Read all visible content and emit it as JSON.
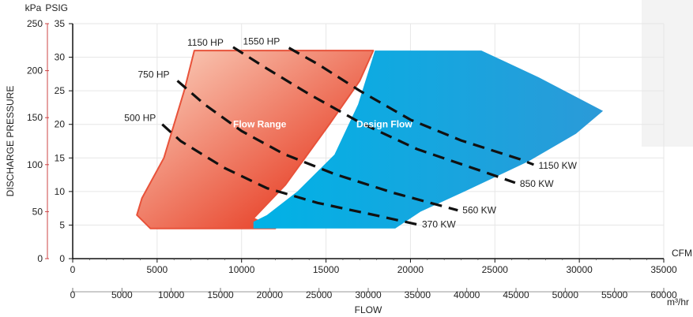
{
  "chart_data": {
    "type": "area",
    "title": "",
    "xlabel": "FLOW",
    "ylabel": "DISCHARGE PRESSURE",
    "x_axis_primary": {
      "unit": "CFM",
      "range": [
        0,
        35000
      ],
      "ticks": [
        0,
        5000,
        10000,
        15000,
        20000,
        25000,
        30000,
        35000
      ]
    },
    "x_axis_secondary": {
      "unit": "m³/hr",
      "range": [
        0,
        60000
      ],
      "ticks": [
        0,
        5000,
        10000,
        15000,
        20000,
        25000,
        30000,
        35000,
        40000,
        45000,
        50000,
        55000,
        60000
      ]
    },
    "y_axis_primary": {
      "unit": "PSIG",
      "range": [
        0,
        35
      ],
      "ticks": [
        0,
        5,
        10,
        15,
        20,
        25,
        30,
        35
      ]
    },
    "y_axis_secondary": {
      "unit": "kPa",
      "range": [
        0,
        250
      ],
      "ticks": [
        0,
        50,
        100,
        150,
        200,
        250
      ]
    },
    "regions": [
      {
        "name": "Flow Range",
        "color_light": "#fbd6c3",
        "color_dark": "#e8432a",
        "edge_color": "#e8523a",
        "points": [
          [
            7200,
            31
          ],
          [
            17800,
            31
          ],
          [
            17000,
            26.5
          ],
          [
            15200,
            20
          ],
          [
            12600,
            11
          ],
          [
            10700,
            6
          ],
          [
            12000,
            4.5
          ],
          [
            4600,
            4.5
          ],
          [
            3800,
            6.5
          ],
          [
            4100,
            9
          ],
          [
            5400,
            15
          ],
          [
            6600,
            25
          ]
        ]
      },
      {
        "name": "Design Flow",
        "color_light": "#00b2e6",
        "color_dark": "#2b9ad8",
        "points": [
          [
            17900,
            31
          ],
          [
            24200,
            31
          ],
          [
            27600,
            27
          ],
          [
            31400,
            22
          ],
          [
            29800,
            18.6
          ],
          [
            27000,
            14.5
          ],
          [
            23200,
            10
          ],
          [
            20600,
            7
          ],
          [
            19100,
            4.5
          ],
          [
            10700,
            4.5
          ],
          [
            10700,
            5.5
          ],
          [
            11500,
            6.5
          ],
          [
            13300,
            10
          ],
          [
            15500,
            15.5
          ],
          [
            16900,
            23
          ]
        ]
      }
    ],
    "series": [
      {
        "name": "500 HP",
        "end_label": "370 KW",
        "points": [
          [
            5300,
            20
          ],
          [
            6400,
            17.5
          ],
          [
            9000,
            13.5
          ],
          [
            11500,
            10.5
          ],
          [
            14500,
            8.3
          ],
          [
            17500,
            6.7
          ],
          [
            20400,
            5.1
          ]
        ]
      },
      {
        "name": "750 HP",
        "end_label": "560 KW",
        "points": [
          [
            6200,
            26.5
          ],
          [
            7800,
            23
          ],
          [
            10000,
            19
          ],
          [
            12500,
            15.6
          ],
          [
            15500,
            12.6
          ],
          [
            19000,
            9.8
          ],
          [
            22800,
            7.2
          ]
        ]
      },
      {
        "name": "1150 HP",
        "end_label": "850 KW",
        "points": [
          [
            9500,
            31.5
          ],
          [
            11500,
            28.3
          ],
          [
            14000,
            24.5
          ],
          [
            17000,
            20.3
          ],
          [
            20400,
            16.3
          ],
          [
            24500,
            12.8
          ],
          [
            26200,
            11.3
          ]
        ]
      },
      {
        "name": "1550 HP",
        "end_label": "1150 KW",
        "points": [
          [
            12800,
            31.4
          ],
          [
            14500,
            29
          ],
          [
            17000,
            25
          ],
          [
            20000,
            20.7
          ],
          [
            23000,
            17.6
          ],
          [
            26500,
            14.8
          ],
          [
            27300,
            14
          ]
        ]
      }
    ]
  }
}
